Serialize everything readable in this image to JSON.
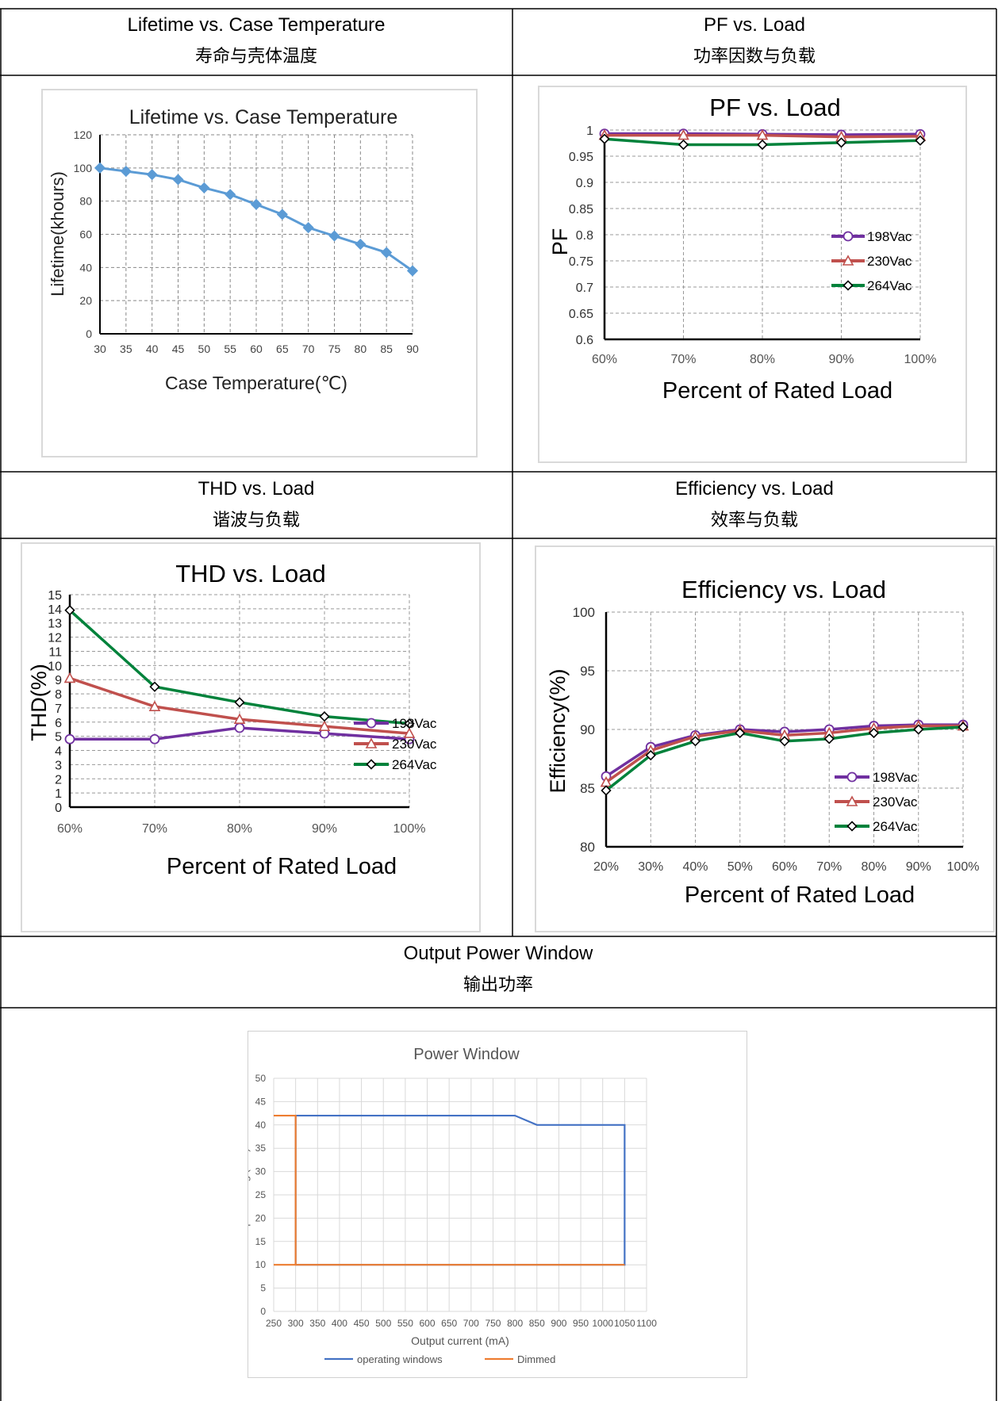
{
  "headers": {
    "lifetime": {
      "en": "Lifetime vs. Case Temperature",
      "zh": "寿命与壳体温度"
    },
    "pf": {
      "en": "PF vs. Load",
      "zh": "功率因数与负载"
    },
    "thd": {
      "en": "THD vs. Load",
      "zh": "谐波与负载"
    },
    "eff": {
      "en": "Efficiency vs. Load",
      "zh": "效率与负载"
    },
    "power": {
      "en": "Output Power Window",
      "zh": "输出功率"
    }
  },
  "chart_data": [
    {
      "id": "lifetime",
      "type": "line",
      "title": "Lifetime vs. Case Temperature",
      "xlabel": "Case Temperature(℃)",
      "ylabel": "Lifetime(khours)",
      "x": [
        30,
        35,
        40,
        45,
        50,
        55,
        60,
        65,
        70,
        75,
        80,
        85,
        90
      ],
      "xticks": [
        "30",
        "35",
        "40",
        "45",
        "50",
        "55",
        "60",
        "65",
        "70",
        "75",
        "80",
        "85",
        "90"
      ],
      "yticks": [
        "0",
        "20",
        "40",
        "60",
        "80",
        "100",
        "120"
      ],
      "xlim": [
        30,
        90
      ],
      "ylim": [
        0,
        120
      ],
      "series": [
        {
          "values": [
            100,
            98,
            96,
            93,
            88,
            84,
            78,
            72,
            64,
            59,
            54,
            49,
            38
          ],
          "color": "#5b9bd5"
        }
      ],
      "grid": true
    },
    {
      "id": "pf",
      "type": "line",
      "title": "PF vs. Load",
      "xlabel": "Percent of Rated Load",
      "ylabel": "PF",
      "categories": [
        "60%",
        "70%",
        "80%",
        "90%",
        "100%"
      ],
      "yticks": [
        "0.6",
        "0.65",
        "0.7",
        "0.75",
        "0.8",
        "0.85",
        "0.9",
        "0.95",
        "1"
      ],
      "ylim": [
        0.6,
        1
      ],
      "legend_position": "right",
      "series": [
        {
          "name": "198Vac",
          "values": [
            0.993,
            0.993,
            0.992,
            0.991,
            0.992
          ],
          "color": "#7030a0",
          "marker": "circle"
        },
        {
          "name": "230Vac",
          "values": [
            0.99,
            0.99,
            0.99,
            0.987,
            0.988
          ],
          "color": "#c0504d",
          "marker": "triangle"
        },
        {
          "name": "264Vac",
          "values": [
            0.983,
            0.972,
            0.972,
            0.976,
            0.98
          ],
          "color": "#00823b",
          "marker": "diamond"
        }
      ],
      "grid": true
    },
    {
      "id": "thd",
      "type": "line",
      "title": "THD vs. Load",
      "xlabel": "Percent of Rated Load",
      "ylabel": "THD(%)",
      "categories": [
        "60%",
        "70%",
        "80%",
        "90%",
        "100%"
      ],
      "yticks": [
        "0",
        "1",
        "2",
        "3",
        "4",
        "5",
        "6",
        "7",
        "8",
        "9",
        "10",
        "11",
        "12",
        "13",
        "14",
        "15"
      ],
      "ylim": [
        0,
        15
      ],
      "legend_position": "bottom-right",
      "series": [
        {
          "name": "198Vac",
          "values": [
            4.8,
            4.8,
            5.6,
            5.2,
            4.8
          ],
          "color": "#7030a0",
          "marker": "circle"
        },
        {
          "name": "230Vac",
          "values": [
            9.1,
            7.1,
            6.2,
            5.7,
            5.2
          ],
          "color": "#c0504d",
          "marker": "triangle"
        },
        {
          "name": "264Vac",
          "values": [
            13.9,
            8.5,
            7.4,
            6.4,
            5.9
          ],
          "color": "#00823b",
          "marker": "diamond"
        }
      ],
      "grid": true
    },
    {
      "id": "eff",
      "type": "line",
      "title": "Efficiency vs. Load",
      "xlabel": "Percent of Rated Load",
      "ylabel": "Efficiency(%)",
      "categories": [
        "20%",
        "30%",
        "40%",
        "50%",
        "60%",
        "70%",
        "80%",
        "90%",
        "100%"
      ],
      "yticks": [
        "80",
        "85",
        "90",
        "95",
        "100"
      ],
      "ylim": [
        80,
        100
      ],
      "legend_position": "bottom-right",
      "series": [
        {
          "name": "198Vac",
          "values": [
            86.0,
            88.5,
            89.5,
            90.0,
            89.8,
            90.0,
            90.3,
            90.4,
            90.4
          ],
          "color": "#7030a0",
          "marker": "circle"
        },
        {
          "name": "230Vac",
          "values": [
            85.5,
            88.2,
            89.4,
            89.9,
            89.5,
            89.7,
            90.1,
            90.3,
            90.3
          ],
          "color": "#c0504d",
          "marker": "triangle"
        },
        {
          "name": "264Vac",
          "values": [
            84.8,
            87.8,
            89.0,
            89.7,
            89.0,
            89.2,
            89.7,
            90.0,
            90.2
          ],
          "color": "#00823b",
          "marker": "diamond"
        }
      ],
      "grid": true
    },
    {
      "id": "power",
      "type": "line",
      "title": "Power Window",
      "xlabel": "Output current (mA)",
      "ylabel": "Output  volateg (Vdc)",
      "xticks": [
        "250",
        "300",
        "350",
        "400",
        "450",
        "500",
        "550",
        "600",
        "650",
        "700",
        "750",
        "800",
        "850",
        "900",
        "950",
        "1000",
        "1050",
        "1100"
      ],
      "yticks": [
        "0",
        "5",
        "10",
        "15",
        "20",
        "25",
        "30",
        "35",
        "40",
        "45",
        "50"
      ],
      "xlim": [
        250,
        1100
      ],
      "ylim": [
        0,
        50
      ],
      "legend_position": "bottom",
      "series": [
        {
          "name": "operating windows",
          "color": "#4472c4",
          "points": [
            [
              300,
              10
            ],
            [
              300,
              42
            ],
            [
              800,
              42
            ],
            [
              850,
              40
            ],
            [
              1050,
              40
            ],
            [
              1050,
              10
            ],
            [
              300,
              10
            ]
          ]
        },
        {
          "name": "Dimmed",
          "color": "#ed7d31",
          "points": [
            [
              250,
              42
            ],
            [
              300,
              42
            ],
            [
              300,
              10
            ],
            [
              250,
              10
            ],
            [
              1050,
              10
            ]
          ]
        }
      ],
      "grid": true
    }
  ]
}
